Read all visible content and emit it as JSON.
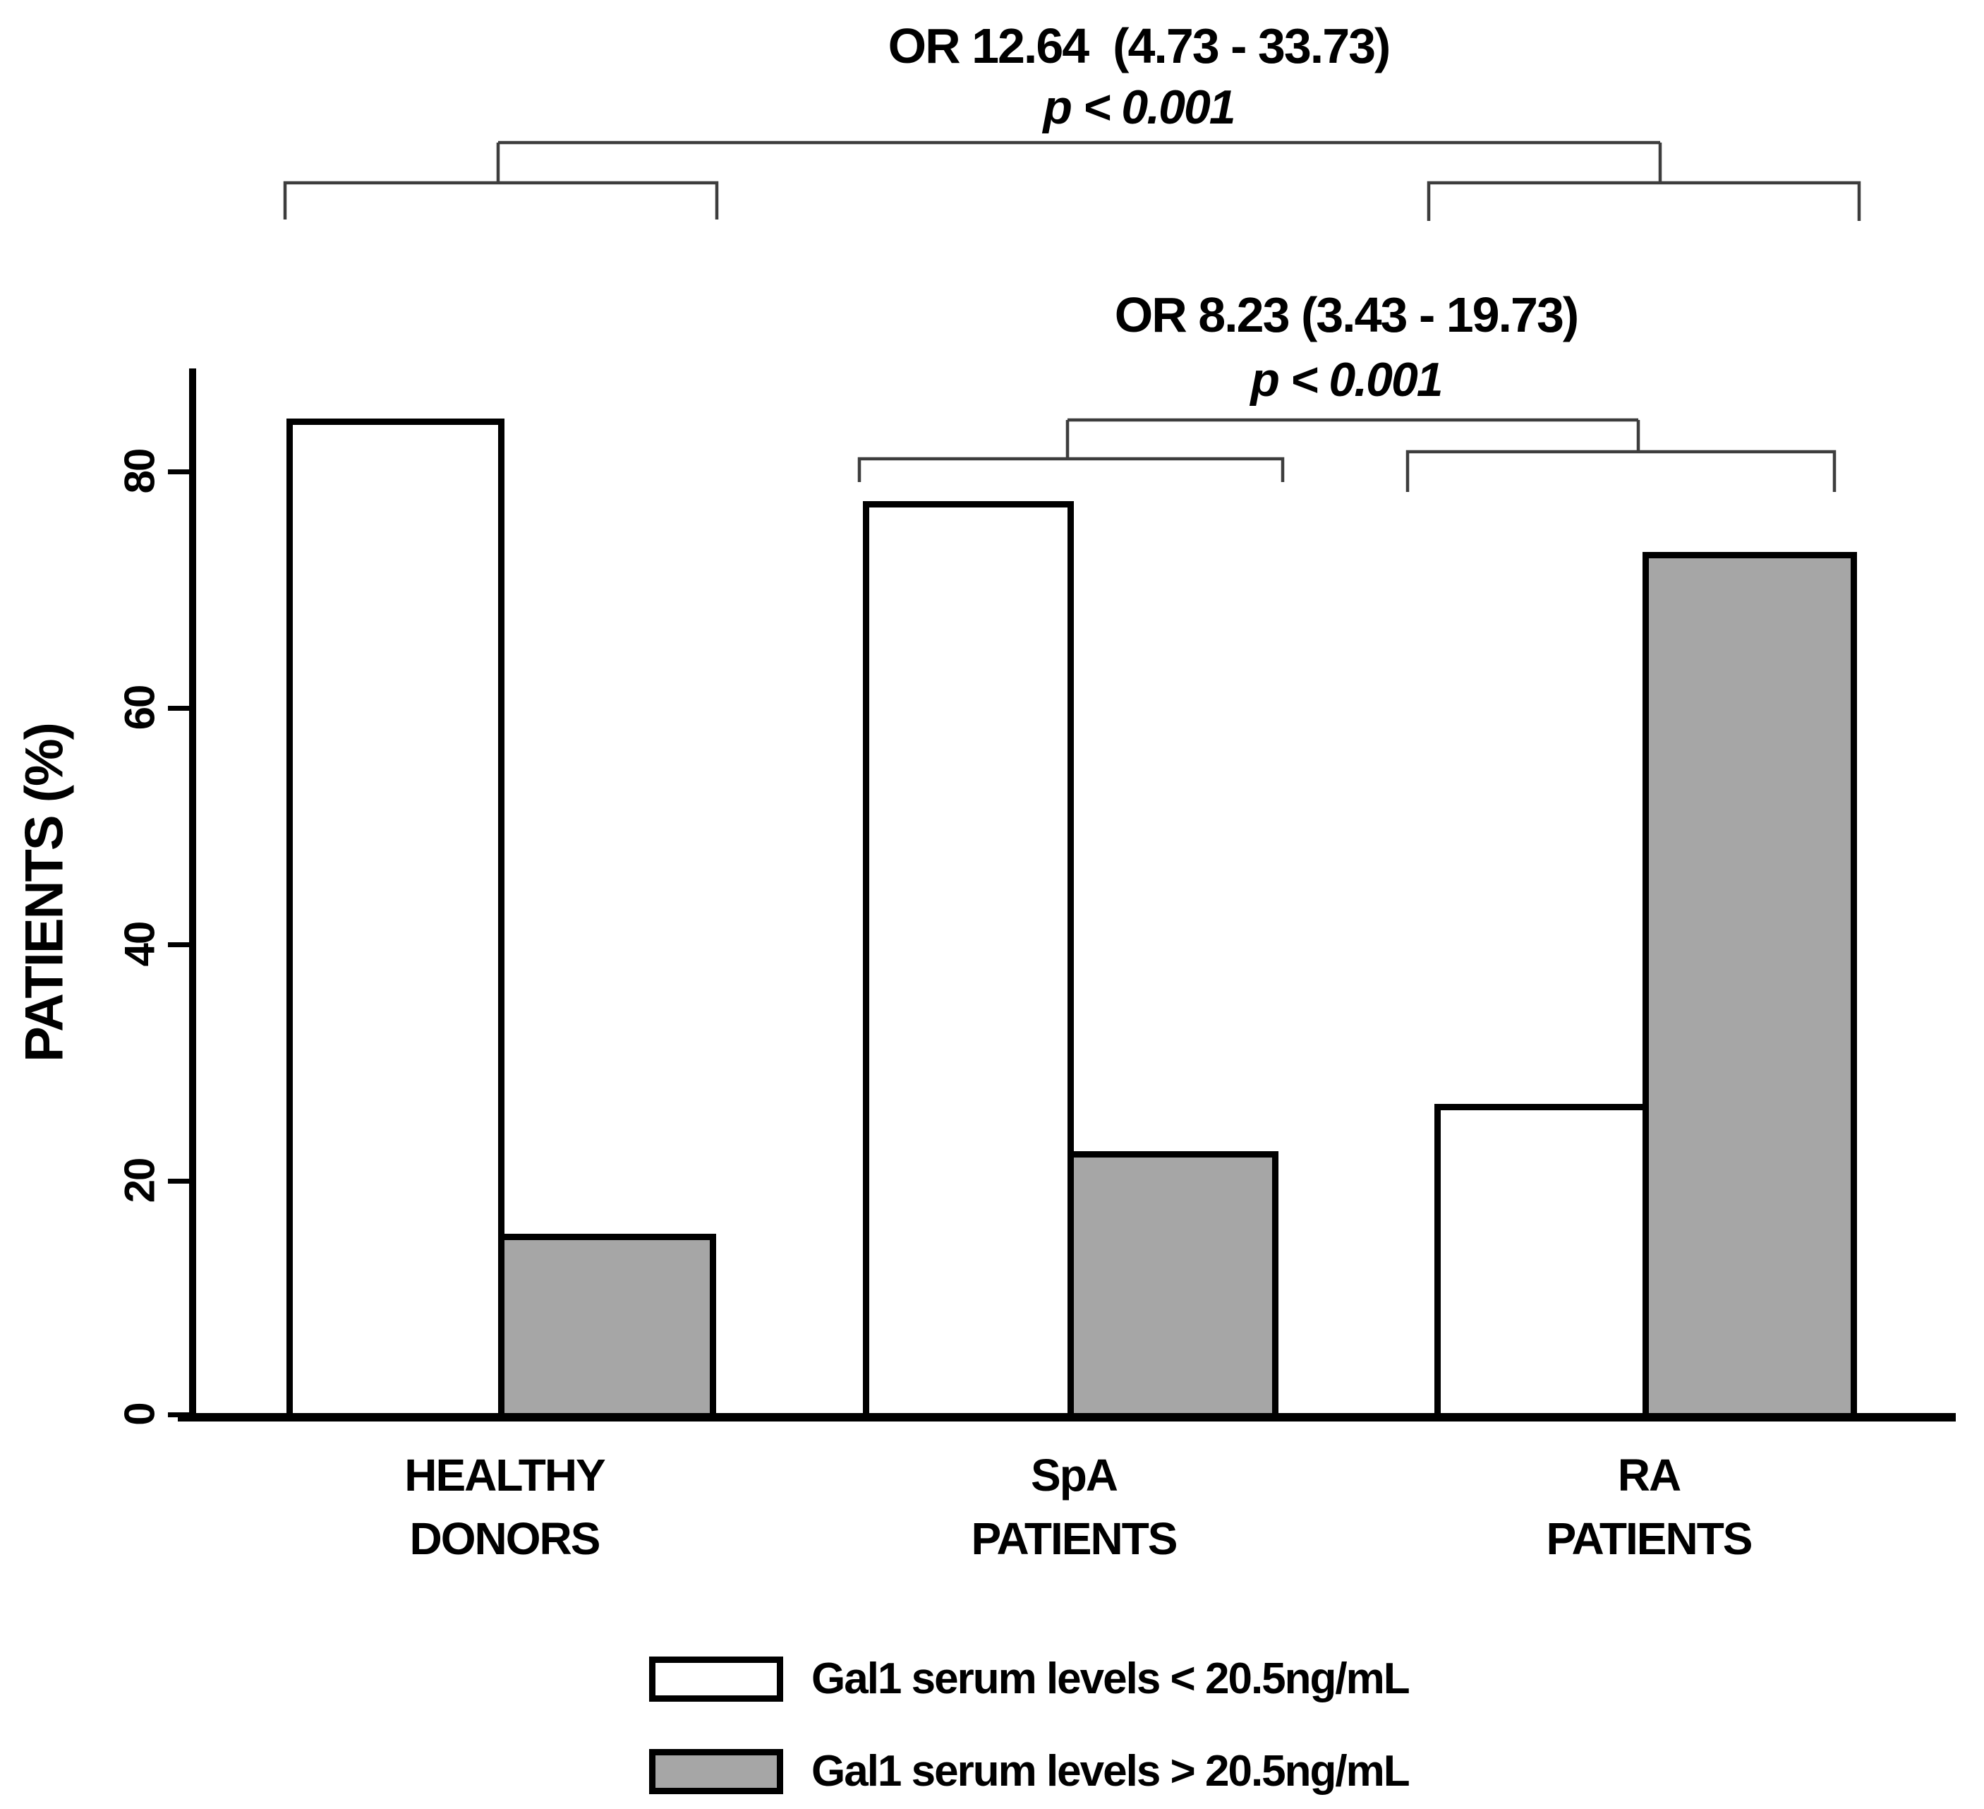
{
  "chart_data": {
    "type": "bar",
    "title": "",
    "xlabel": "",
    "ylabel": "PATIENTS (%)",
    "ylim": [
      0,
      88
    ],
    "yticks": [
      "0",
      "20",
      "40",
      "60",
      "80"
    ],
    "grid": false,
    "legend_position": "bottom",
    "categories": [
      [
        "HEALTHY",
        "DONORS"
      ],
      [
        "SpA",
        "PATIENTS"
      ],
      [
        "RA",
        "PATIENTS"
      ]
    ],
    "series": [
      {
        "name": "Gal1 serum levels < 20.5ng/mL",
        "fill": "#ffffff",
        "values": [
          84.5,
          77.5,
          26.5
        ]
      },
      {
        "name": "Gal1 serum levels > 20.5ng/mL",
        "fill": "#a6a6a6",
        "values": [
          15.5,
          22.5,
          73.2
        ]
      }
    ],
    "bar_border_color": "#000000",
    "axis_color": "#000000"
  },
  "annotations": {
    "comparison1": {
      "compares": [
        "HEALTHY DONORS",
        "RA PATIENTS"
      ],
      "or": "OR 12.64  (4.73 - 33.73)",
      "p": "p < 0.001"
    },
    "comparison2": {
      "compares": [
        "SpA PATIENTS",
        "RA PATIENTS"
      ],
      "or": "OR 8.23 (3.43 - 19.73)",
      "p": "p < 0.001"
    }
  }
}
